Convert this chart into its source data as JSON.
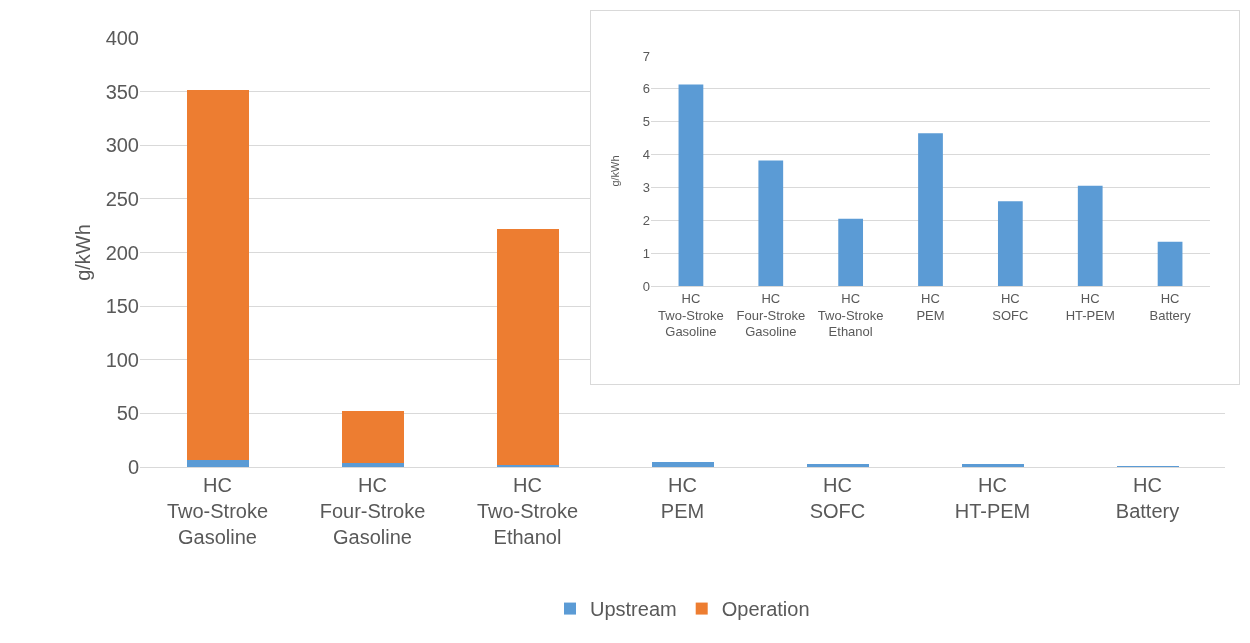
{
  "chart_data": [
    {
      "type": "bar",
      "stacked": true,
      "ylabel": "g/kWh",
      "categories": [
        "HC\nTwo-Stroke\nGasoline",
        "HC\nFour-Stroke\nGasoline",
        "HC\nTwo-Stroke\nEthanol",
        "HC\nPEM",
        "HC\nSOFC",
        "HC\nHT-PEM",
        "HC\nBattery"
      ],
      "series": [
        {
          "name": "Upstream",
          "color": "#5b9bd5",
          "values": [
            6.13,
            3.82,
            2.05,
            4.65,
            2.58,
            3.05,
            1.35
          ]
        },
        {
          "name": "Operation",
          "color": "#ed7d31",
          "values": [
            345,
            48,
            220,
            0,
            0,
            0,
            0
          ]
        }
      ],
      "ylim": [
        0,
        400
      ],
      "yticks": [
        0,
        50,
        100,
        150,
        200,
        250,
        300,
        350,
        400
      ],
      "grid": "y",
      "legend": "bottom"
    },
    {
      "type": "bar",
      "ylabel": "g/kWh",
      "categories": [
        "HC\nTwo-Stroke\nGasoline",
        "HC\nFour-Stroke\nGasoline",
        "HC\nTwo-Stroke\nEthanol",
        "HC\nPEM",
        "HC\nSOFC",
        "HC\nHT-PEM",
        "HC\nBattery"
      ],
      "values": [
        6.13,
        3.82,
        2.05,
        4.65,
        2.58,
        3.05,
        1.35
      ],
      "color": "#5b9bd5",
      "ylim": [
        0,
        7
      ],
      "yticks": [
        0,
        1,
        2,
        3,
        4,
        5,
        6,
        7
      ],
      "grid": "y"
    }
  ]
}
